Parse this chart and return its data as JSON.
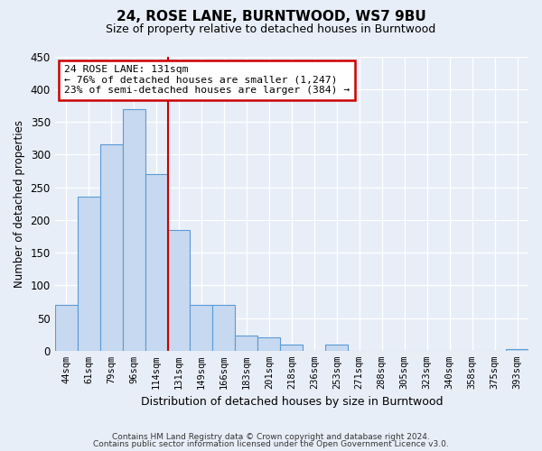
{
  "title": "24, ROSE LANE, BURNTWOOD, WS7 9BU",
  "subtitle": "Size of property relative to detached houses in Burntwood",
  "xlabel": "Distribution of detached houses by size in Burntwood",
  "ylabel": "Number of detached properties",
  "footer_line1": "Contains HM Land Registry data © Crown copyright and database right 2024.",
  "footer_line2": "Contains public sector information licensed under the Open Government Licence v3.0.",
  "bar_labels": [
    "44sqm",
    "61sqm",
    "79sqm",
    "96sqm",
    "114sqm",
    "131sqm",
    "149sqm",
    "166sqm",
    "183sqm",
    "201sqm",
    "218sqm",
    "236sqm",
    "253sqm",
    "271sqm",
    "288sqm",
    "305sqm",
    "323sqm",
    "340sqm",
    "358sqm",
    "375sqm",
    "393sqm"
  ],
  "bar_values": [
    70,
    235,
    315,
    370,
    270,
    185,
    70,
    70,
    23,
    20,
    10,
    0,
    10,
    0,
    0,
    0,
    0,
    0,
    0,
    0,
    3
  ],
  "bar_color": "#c6d9f0",
  "bar_edge_color": "#5b9bd5",
  "vline_index": 5,
  "vline_color": "#cc0000",
  "ylim": [
    0,
    450
  ],
  "yticks": [
    0,
    50,
    100,
    150,
    200,
    250,
    300,
    350,
    400,
    450
  ],
  "annotation_title": "24 ROSE LANE: 131sqm",
  "annotation_line1": "← 76% of detached houses are smaller (1,247)",
  "annotation_line2": "23% of semi-detached houses are larger (384) →",
  "annotation_box_color": "#ffffff",
  "annotation_box_edge_color": "#cc0000",
  "bg_color": "#e8eef8",
  "grid_color": "#ffffff"
}
